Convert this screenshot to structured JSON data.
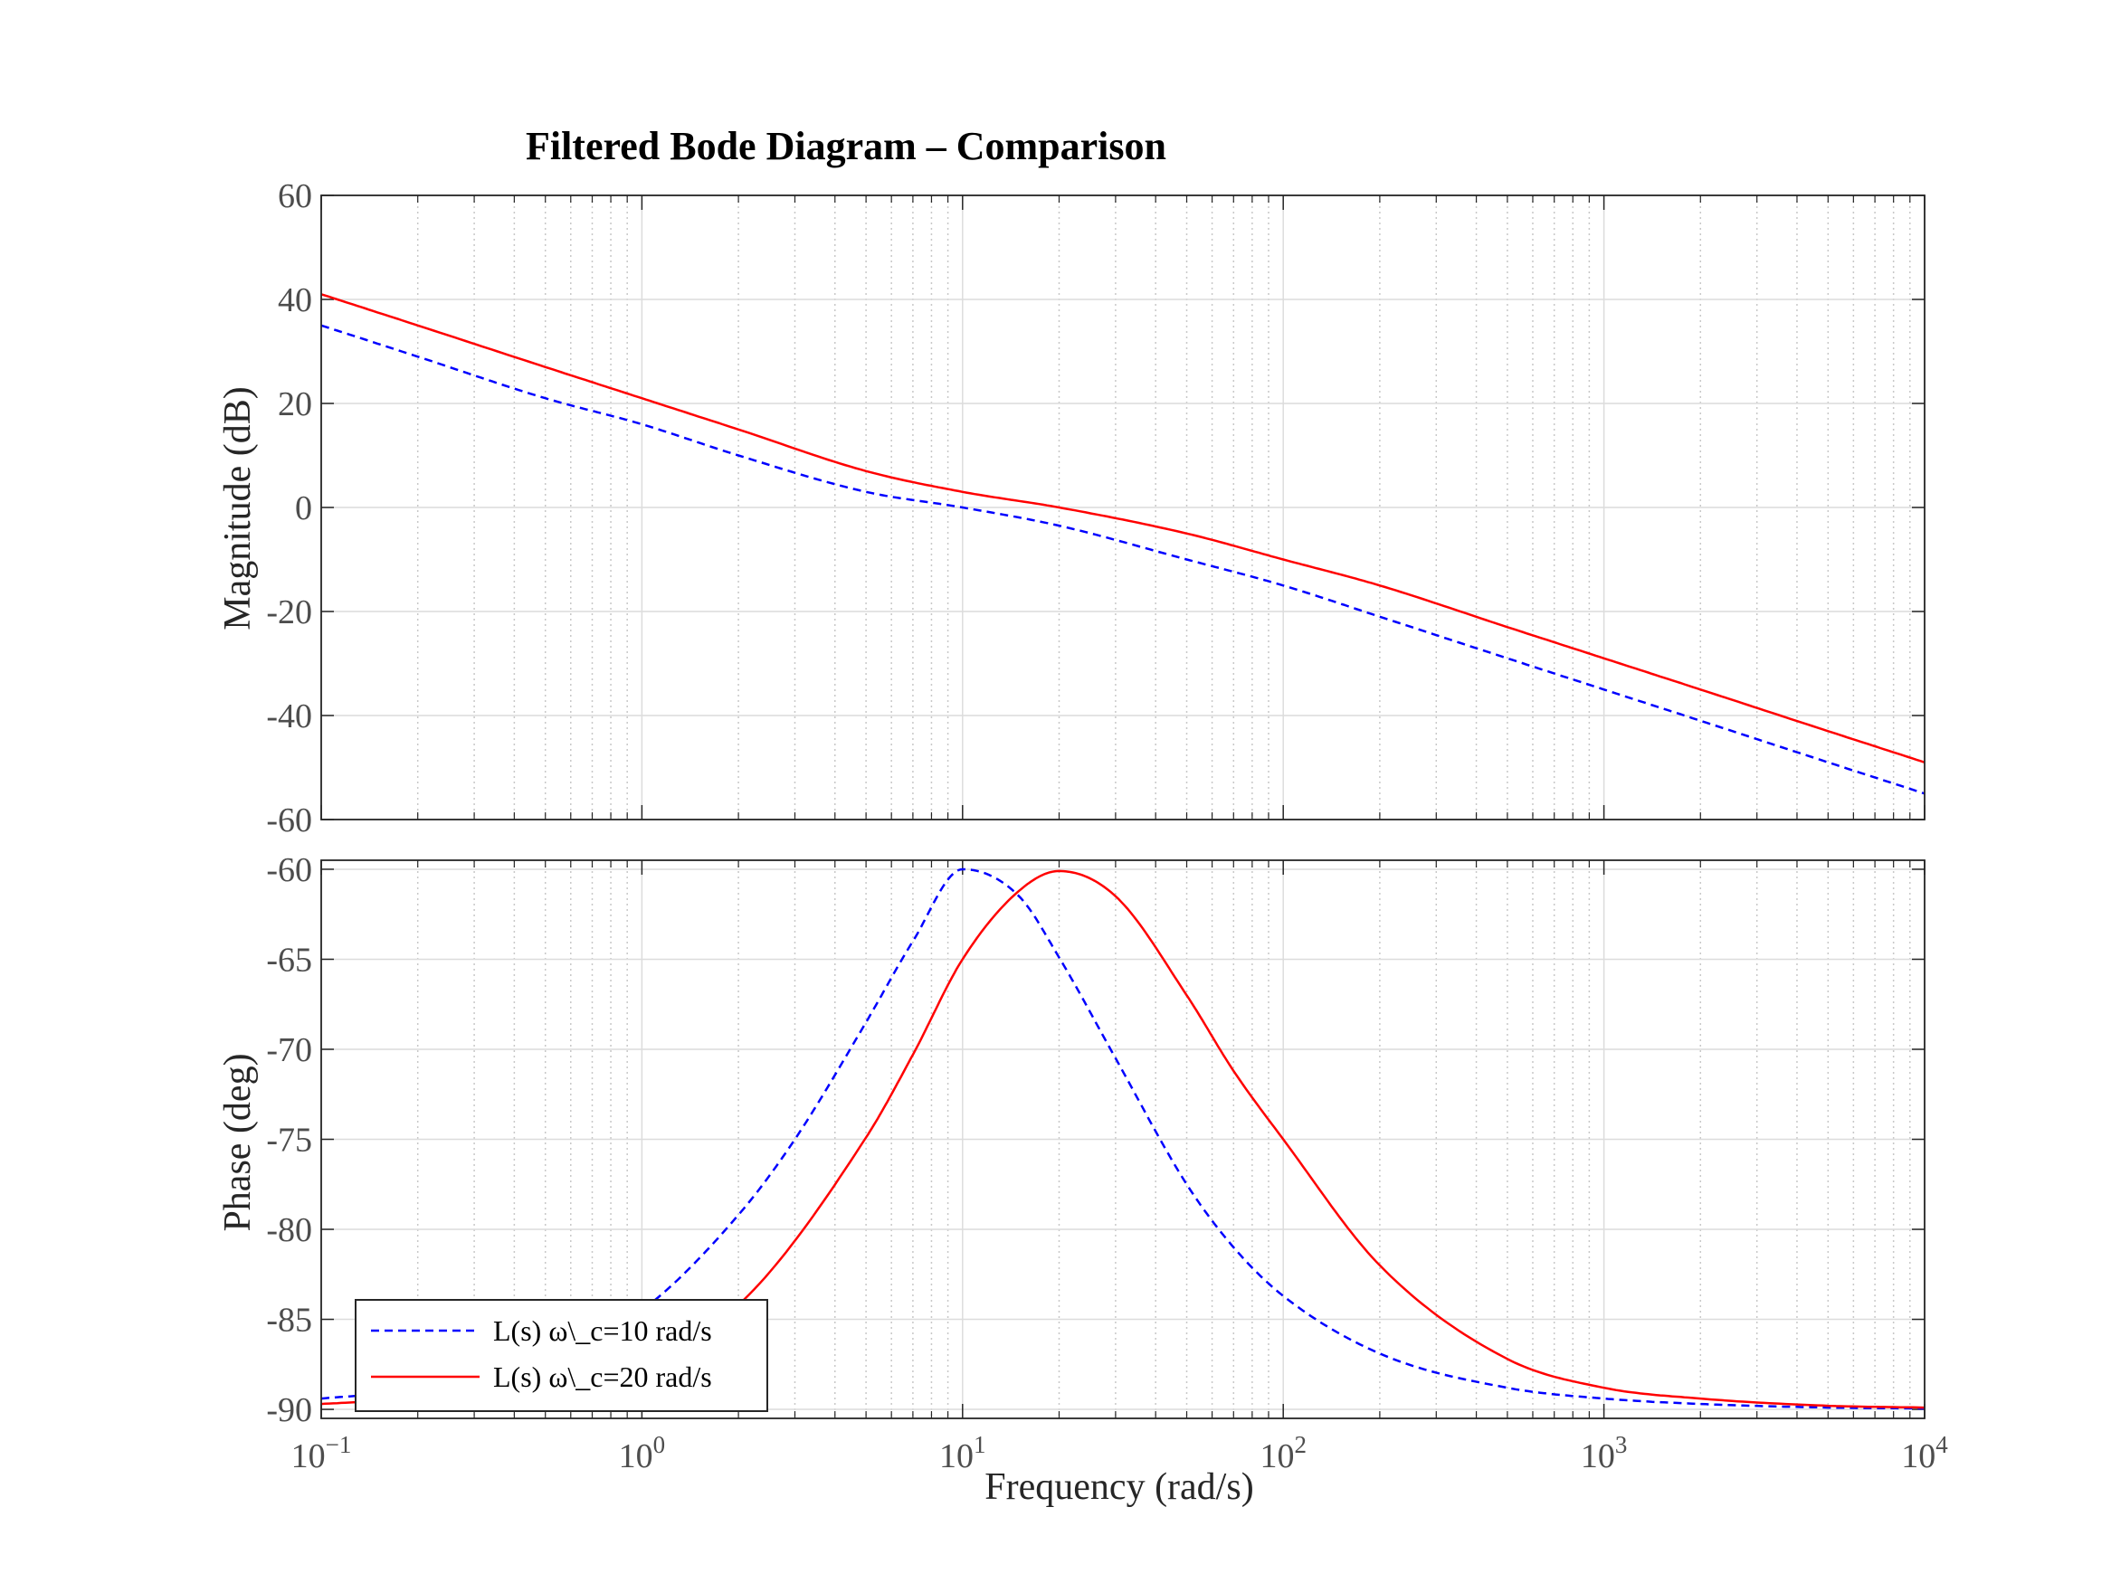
{
  "chart_data": {
    "type": "line",
    "title": "Filtered Bode Diagram – Comparison",
    "xlabel": "Frequency  (rad/s)",
    "xscale": "log",
    "xlim": [
      0.1,
      10000
    ],
    "x_tick_labels": [
      {
        "base": "10",
        "exp": "−1"
      },
      {
        "base": "10",
        "exp": "0"
      },
      {
        "base": "10",
        "exp": "1"
      },
      {
        "base": "10",
        "exp": "2"
      },
      {
        "base": "10",
        "exp": "3"
      },
      {
        "base": "10",
        "exp": "4"
      }
    ],
    "grid": true,
    "legend_position": "bottom-left",
    "subplots": [
      {
        "ylabel": "Magnitude (dB)",
        "ylim": [
          -60,
          60
        ],
        "yticks": [
          -60,
          -40,
          -20,
          0,
          20,
          40,
          60
        ],
        "ytick_labels": [
          "-60",
          "-40",
          "-20",
          "0",
          "20",
          "40",
          "60"
        ],
        "series": [
          {
            "name": "L(s) ω\\_c=10 rad/s",
            "color": "#0000ff",
            "style": "dashed",
            "x": [
              0.1,
              0.2,
              0.5,
              1,
              2,
              5,
              10,
              20,
              50,
              100,
              200,
              500,
              1000,
              2000,
              5000,
              10000
            ],
            "y": [
              35,
              29,
              21,
              16,
              10,
              3,
              0,
              -3.5,
              -10,
              -15,
              -21,
              -29,
              -35,
              -41,
              -49,
              -55
            ]
          },
          {
            "name": "L(s) ω\\_c=20 rad/s",
            "color": "#ff0000",
            "style": "solid",
            "x": [
              0.1,
              0.2,
              0.5,
              1,
              2,
              5,
              10,
              20,
              50,
              100,
              200,
              500,
              1000,
              2000,
              5000,
              10000
            ],
            "y": [
              41,
              35,
              27,
              21,
              15,
              7,
              3,
              0,
              -5,
              -10,
              -15,
              -23,
              -29,
              -35,
              -43,
              -49
            ]
          }
        ]
      },
      {
        "ylabel": "Phase (deg)",
        "ylim": [
          -90.5,
          -59.5
        ],
        "yticks": [
          -90,
          -85,
          -80,
          -75,
          -70,
          -65,
          -60
        ],
        "ytick_labels": [
          "-90",
          "-85",
          "-80",
          "-75",
          "-70",
          "-65",
          "-60"
        ],
        "series": [
          {
            "name": "L(s) ω\\_c=10 rad/s",
            "color": "#0000ff",
            "style": "dashed",
            "x": [
              0.1,
              0.2,
              0.5,
              1,
              2,
              3,
              5,
              7,
              10,
              15,
              20,
              30,
              50,
              70,
              100,
              200,
              500,
              1000,
              2000,
              5000,
              10000
            ],
            "y": [
              -89.4,
              -88.9,
              -87.2,
              -84.5,
              -79.2,
              -75,
              -68.5,
              -64,
              -60,
              -61.5,
              -64.9,
              -70.5,
              -77.5,
              -81,
              -83.7,
              -86.9,
              -88.8,
              -89.4,
              -89.7,
              -89.9,
              -89.95
            ]
          },
          {
            "name": "L(s) ω\\_c=20 rad/s",
            "color": "#ff0000",
            "style": "solid",
            "x": [
              0.1,
              0.2,
              0.5,
              1,
              2,
              5,
              7,
              10,
              15,
              20,
              30,
              50,
              70,
              100,
              200,
              500,
              1000,
              2000,
              5000,
              10000
            ],
            "y": [
              -89.7,
              -89.4,
              -88.6,
              -87.1,
              -84.2,
              -74.9,
              -70.3,
              -65,
              -61.2,
              -60.1,
              -61.5,
              -67,
              -71.2,
              -75,
              -82,
              -87.2,
              -88.8,
              -89.4,
              -89.8,
              -89.9
            ]
          }
        ]
      }
    ]
  }
}
